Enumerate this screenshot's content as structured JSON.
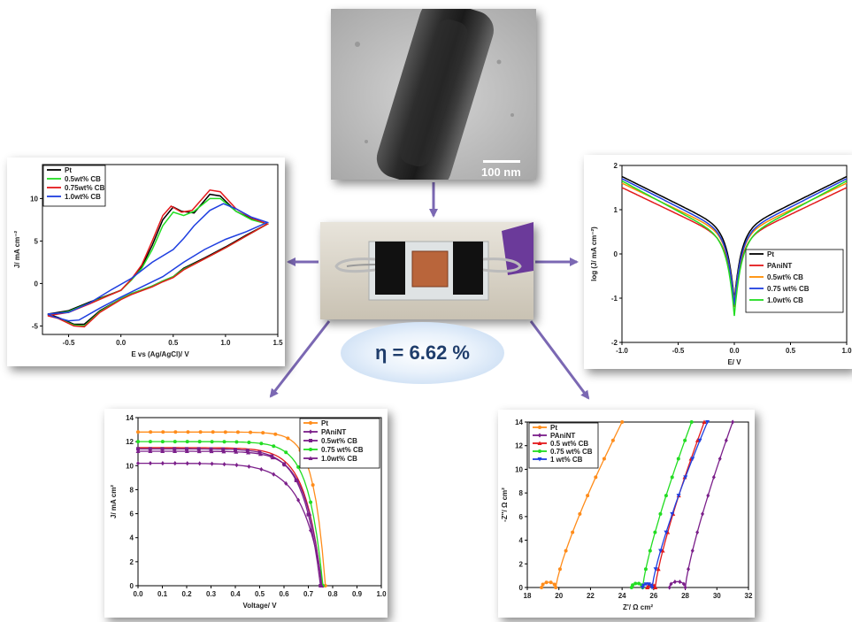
{
  "center": {
    "efficiency_label": "η  = 6.62 %",
    "scale_bar": "100 nm"
  },
  "colors": {
    "pt": "#000000",
    "panint": "#e31a1c",
    "cb05": "#ff8c00",
    "cb075": "#1f3fe0",
    "cb10": "#22dd22",
    "orange": "#ff8c1a",
    "purple": "#7b1f8a",
    "blue": "#1f3fe0",
    "green": "#22dd22",
    "red": "#e31a1c",
    "arrow": "#7b68b3"
  },
  "chart_data": [
    {
      "id": "cv",
      "type": "line",
      "xlabel": "E vs (Ag/AgCl)/ V",
      "ylabel": "J/ mA cm⁻²",
      "xlim": [
        -0.75,
        1.5
      ],
      "ylim": [
        -6,
        14
      ],
      "xticks": [
        -0.5,
        0.0,
        0.5,
        1.0,
        1.5
      ],
      "xticklabels": [
        "-0.5",
        "0.0",
        "0.5",
        "1.0",
        "1.5"
      ],
      "yticks": [
        -5,
        0,
        5,
        10
      ],
      "yticklabels": [
        "-5",
        "0",
        "5",
        "10"
      ],
      "legend_position": "top-left",
      "series": [
        {
          "name": "Pt",
          "color": "#000000",
          "forward": [
            [
              -0.7,
              -3.6
            ],
            [
              -0.5,
              -3.2
            ],
            [
              -0.3,
              -2.2
            ],
            [
              0,
              -0.8
            ],
            [
              0.1,
              0.5
            ],
            [
              0.2,
              2
            ],
            [
              0.3,
              4.5
            ],
            [
              0.4,
              7.5
            ],
            [
              0.5,
              9
            ],
            [
              0.58,
              8.5
            ],
            [
              0.7,
              8.3
            ],
            [
              0.85,
              10.5
            ],
            [
              0.95,
              10.3
            ],
            [
              1.1,
              8.5
            ],
            [
              1.25,
              7.6
            ],
            [
              1.4,
              7
            ]
          ],
          "reverse": [
            [
              1.4,
              7
            ],
            [
              1.2,
              5.7
            ],
            [
              1.0,
              4.3
            ],
            [
              0.8,
              3
            ],
            [
              0.6,
              1.8
            ],
            [
              0.5,
              0.8
            ],
            [
              0.4,
              0.3
            ],
            [
              0.3,
              -0.3
            ],
            [
              0.1,
              -1.2
            ],
            [
              0,
              -1.8
            ],
            [
              -0.2,
              -3.2
            ],
            [
              -0.35,
              -4.8
            ],
            [
              -0.45,
              -4.8
            ],
            [
              -0.6,
              -4
            ],
            [
              -0.7,
              -3.6
            ]
          ]
        },
        {
          "name": "0.5wt% CB",
          "color": "#22dd22",
          "forward": [
            [
              -0.7,
              -3.7
            ],
            [
              -0.5,
              -3.3
            ],
            [
              -0.3,
              -2.3
            ],
            [
              0,
              -0.8
            ],
            [
              0.1,
              0.4
            ],
            [
              0.2,
              1.8
            ],
            [
              0.3,
              4
            ],
            [
              0.4,
              6.8
            ],
            [
              0.5,
              8.4
            ],
            [
              0.6,
              8
            ],
            [
              0.7,
              8.5
            ],
            [
              0.85,
              10
            ],
            [
              0.95,
              10
            ],
            [
              1.1,
              8.5
            ],
            [
              1.25,
              7.5
            ],
            [
              1.4,
              7
            ]
          ],
          "reverse": [
            [
              1.4,
              7
            ],
            [
              1.2,
              5.6
            ],
            [
              1.0,
              4.2
            ],
            [
              0.8,
              2.9
            ],
            [
              0.6,
              1.7
            ],
            [
              0.5,
              0.8
            ],
            [
              0.4,
              0.3
            ],
            [
              0.3,
              -0.3
            ],
            [
              0.1,
              -1.2
            ],
            [
              0,
              -1.8
            ],
            [
              -0.2,
              -3.3
            ],
            [
              -0.35,
              -5
            ],
            [
              -0.45,
              -4.9
            ],
            [
              -0.6,
              -4.1
            ],
            [
              -0.7,
              -3.7
            ]
          ]
        },
        {
          "name": "0.75wt% CB",
          "color": "#e31a1c",
          "forward": [
            [
              -0.7,
              -3.8
            ],
            [
              -0.5,
              -3.4
            ],
            [
              -0.3,
              -2.4
            ],
            [
              0,
              -0.8
            ],
            [
              0.1,
              0.5
            ],
            [
              0.2,
              2.2
            ],
            [
              0.3,
              5
            ],
            [
              0.4,
              8
            ],
            [
              0.48,
              9.1
            ],
            [
              0.58,
              8.4
            ],
            [
              0.68,
              8.6
            ],
            [
              0.85,
              11
            ],
            [
              0.95,
              10.8
            ],
            [
              1.1,
              8.8
            ],
            [
              1.25,
              7.7
            ],
            [
              1.4,
              7
            ]
          ],
          "reverse": [
            [
              1.4,
              7
            ],
            [
              1.2,
              5.6
            ],
            [
              1.0,
              4.2
            ],
            [
              0.8,
              2.9
            ],
            [
              0.6,
              1.6
            ],
            [
              0.5,
              0.7
            ],
            [
              0.4,
              0.2
            ],
            [
              0.3,
              -0.4
            ],
            [
              0.1,
              -1.3
            ],
            [
              0,
              -1.9
            ],
            [
              -0.2,
              -3.4
            ],
            [
              -0.35,
              -5.1
            ],
            [
              -0.45,
              -5
            ],
            [
              -0.6,
              -4.1
            ],
            [
              -0.7,
              -3.8
            ]
          ]
        },
        {
          "name": "1.0wt% CB",
          "color": "#1f3fe0",
          "forward": [
            [
              -0.7,
              -3.6
            ],
            [
              -0.5,
              -3.4
            ],
            [
              -0.3,
              -2.3
            ],
            [
              -0.1,
              -0.8
            ],
            [
              0.1,
              0.6
            ],
            [
              0.3,
              2.5
            ],
            [
              0.5,
              4
            ],
            [
              0.6,
              5.3
            ],
            [
              0.7,
              6.8
            ],
            [
              0.85,
              8.6
            ],
            [
              0.98,
              9.4
            ],
            [
              1.1,
              8.8
            ],
            [
              1.25,
              7.8
            ],
            [
              1.4,
              7.2
            ]
          ],
          "reverse": [
            [
              1.4,
              7.2
            ],
            [
              1.2,
              6.1
            ],
            [
              1.0,
              5.2
            ],
            [
              0.8,
              4
            ],
            [
              0.6,
              2.5
            ],
            [
              0.4,
              0.8
            ],
            [
              0.2,
              -0.4
            ],
            [
              0,
              -1.6
            ],
            [
              -0.2,
              -2.9
            ],
            [
              -0.4,
              -4.3
            ],
            [
              -0.5,
              -4.4
            ],
            [
              -0.65,
              -3.9
            ],
            [
              -0.7,
              -3.6
            ]
          ]
        }
      ]
    },
    {
      "id": "tafel",
      "type": "line",
      "xlabel": "E/ V",
      "ylabel": "log (J/ mA cm⁻²)",
      "xlim": [
        -1.0,
        1.0
      ],
      "ylim": [
        -2,
        2
      ],
      "xticks": [
        -1.0,
        -0.5,
        0.0,
        0.5,
        1.0
      ],
      "xticklabels": [
        "-1.0",
        "-0.5",
        "0.0",
        "0.5",
        "1.0"
      ],
      "yticks": [
        -2,
        -1,
        0,
        1,
        2
      ],
      "yticklabels": [
        "-2",
        "-1",
        "0",
        "1",
        "2"
      ],
      "legend_position": "bottom-right",
      "series": [
        {
          "name": "Pt",
          "color": "#000000",
          "limit": 1.75,
          "min": -1.05,
          "sat": 0.85
        },
        {
          "name": "PAniNT",
          "color": "#e31a1c",
          "limit": 1.5,
          "min": -1.2,
          "sat": 0.55
        },
        {
          "name": "0.5wt% CB",
          "color": "#ff8c00",
          "limit": 1.6,
          "min": -1.1,
          "sat": 0.65
        },
        {
          "name": "0.75 wt% CB",
          "color": "#1f3fe0",
          "limit": 1.7,
          "min": -1.15,
          "sat": 0.7
        },
        {
          "name": "1.0wt% CB",
          "color": "#22dd22",
          "limit": 1.65,
          "min": -1.4,
          "sat": 0.6
        }
      ]
    },
    {
      "id": "jv",
      "type": "line",
      "xlabel": "Voltage/ V",
      "ylabel": "J/ mA cm²",
      "xlim": [
        0,
        1.0
      ],
      "ylim": [
        0,
        14
      ],
      "xticks": [
        0,
        0.1,
        0.2,
        0.3,
        0.4,
        0.5,
        0.6,
        0.7,
        0.8,
        0.9,
        1.0
      ],
      "xticklabels": [
        "0.0",
        "0.1",
        "0.2",
        "0.3",
        "0.4",
        "0.5",
        "0.6",
        "0.7",
        "0.8",
        "0.9",
        "1.0"
      ],
      "yticks": [
        0,
        2,
        4,
        6,
        8,
        10,
        12,
        14
      ],
      "yticklabels": [
        "0",
        "2",
        "4",
        "6",
        "8",
        "10",
        "12",
        "14"
      ],
      "legend_position": "top-right",
      "series": [
        {
          "name": "Pt",
          "color": "#ff8c1a",
          "marker": "circle",
          "jsc": 12.8,
          "voc": 0.77,
          "k": 16
        },
        {
          "name": "PAniNT",
          "color": "#7b1f8a",
          "marker": "diamond",
          "jsc": 10.2,
          "voc": 0.76,
          "k": 9
        },
        {
          "name": "0.5wt% CB",
          "color": "#7b1f8a",
          "marker": "square",
          "jsc": 11.4,
          "voc": 0.75,
          "k": 11
        },
        {
          "name": "0.75 wt% CB",
          "color": "#22dd22",
          "marker": "circle",
          "jsc": 12.0,
          "voc": 0.76,
          "k": 13
        },
        {
          "name": "1.0wt% CB",
          "color": "#7b1f8a",
          "marker": "triangle",
          "jsc": 11.2,
          "voc": 0.755,
          "k": 11.5
        }
      ],
      "overlay": {
        "color": "#e31a1c",
        "jsc": 11.5,
        "voc": 0.755,
        "k": 11.5
      }
    },
    {
      "id": "eis",
      "type": "line",
      "xlabel": "Z'/ Ω cm²",
      "ylabel": "-Z''/ Ω cm²",
      "xlim": [
        18,
        32
      ],
      "ylim": [
        0,
        14
      ],
      "xticks": [
        18,
        20,
        22,
        24,
        26,
        28,
        30,
        32
      ],
      "xticklabels": [
        "18",
        "20",
        "22",
        "24",
        "26",
        "28",
        "30",
        "32"
      ],
      "yticks": [
        0,
        2,
        4,
        6,
        8,
        10,
        12,
        14
      ],
      "yticklabels": [
        "0",
        "2",
        "4",
        "6",
        "8",
        "10",
        "12",
        "14"
      ],
      "legend_position": "top-left",
      "series": [
        {
          "name": "Pt",
          "color": "#ff8c1a",
          "marker": "circle",
          "x0": 18.9,
          "x1": 19.8,
          "xend": 24.0
        },
        {
          "name": "PAniNT",
          "color": "#7b1f8a",
          "marker": "diamond",
          "x0": 27.0,
          "x1": 28.0,
          "xend": 31.0
        },
        {
          "name": "0.5 wt% CB",
          "color": "#e31a1c",
          "marker": "triangle",
          "x0": 25.6,
          "x1": 26.1,
          "xend": 29.2
        },
        {
          "name": "0.75 wt% CB",
          "color": "#22dd22",
          "marker": "circle",
          "x0": 24.6,
          "x1": 25.3,
          "xend": 28.4
        },
        {
          "name": "1 wt% CB",
          "color": "#1f3fe0",
          "marker": "triangle-down",
          "x0": 25.3,
          "x1": 25.9,
          "xend": 29.4
        }
      ]
    }
  ]
}
